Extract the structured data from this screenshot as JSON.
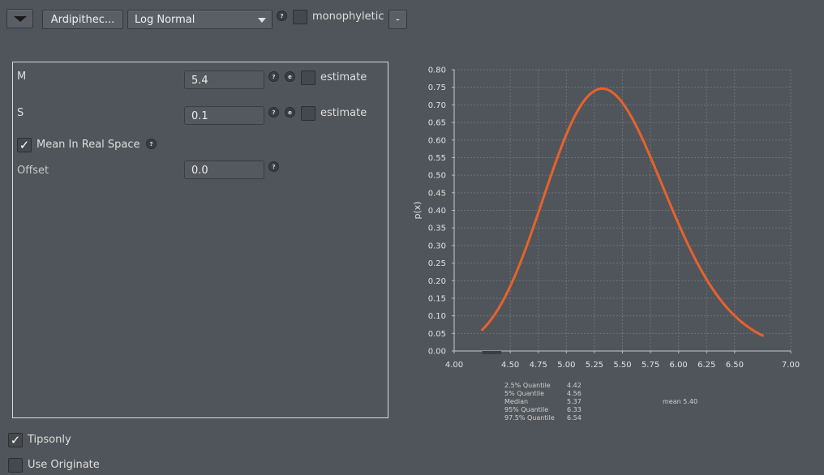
{
  "toolbar": {
    "collapse_icon": "triangle-down-icon",
    "taxon_label": "Ardipithec...",
    "distribution_selected": "Log Normal",
    "help_glyph": "?",
    "monophyletic_label": "monophyletic",
    "monophyletic_checked": false,
    "remove_label": "-"
  },
  "params": {
    "m_label": "M",
    "m_value": "5.4",
    "m_estimate_label": "estimate",
    "s_label": "S",
    "s_value": "0.1",
    "s_estimate_label": "estimate",
    "mean_real_space_label": "Mean In Real Space",
    "mean_real_space_checked": true,
    "offset_label": "Offset",
    "offset_value": "0.0",
    "help_glyph": "?",
    "edit_glyph": "e"
  },
  "chart_data": {
    "type": "line",
    "ylabel": "p(x)",
    "xlabel": "",
    "xlim": [
      4.0,
      7.0
    ],
    "ylim": [
      0.0,
      0.8
    ],
    "x_ticks": [
      "4.00",
      "4.50",
      "4.75",
      "5.00",
      "5.25",
      "5.50",
      "5.75",
      "6.00",
      "6.25",
      "6.50",
      "7.00"
    ],
    "y_ticks": [
      "0.00",
      "0.05",
      "0.10",
      "0.15",
      "0.20",
      "0.25",
      "0.30",
      "0.35",
      "0.40",
      "0.45",
      "0.50",
      "0.55",
      "0.60",
      "0.65",
      "0.70",
      "0.75",
      "0.80"
    ],
    "grid": true,
    "line_color": "#e8622c",
    "distribution": {
      "family": "lognormal",
      "M": 5.4,
      "S": 0.1,
      "mean_in_real_space": true,
      "offset": 0.0
    },
    "x_range_drawn": [
      4.25,
      6.75
    ],
    "stats": [
      {
        "label": "2.5% Quantile",
        "value": "4.42"
      },
      {
        "label": "5% Quantile",
        "value": "4.56"
      },
      {
        "label": "Median",
        "value": "5.37"
      },
      {
        "label": "95% Quantile",
        "value": "6.33"
      },
      {
        "label": "97.5% Quantile",
        "value": "6.54"
      }
    ],
    "mean_text": "mean 5.40"
  },
  "options": {
    "tipsonly_label": "Tipsonly",
    "tipsonly_checked": true,
    "use_originate_label": "Use Originate",
    "use_originate_checked": false
  }
}
